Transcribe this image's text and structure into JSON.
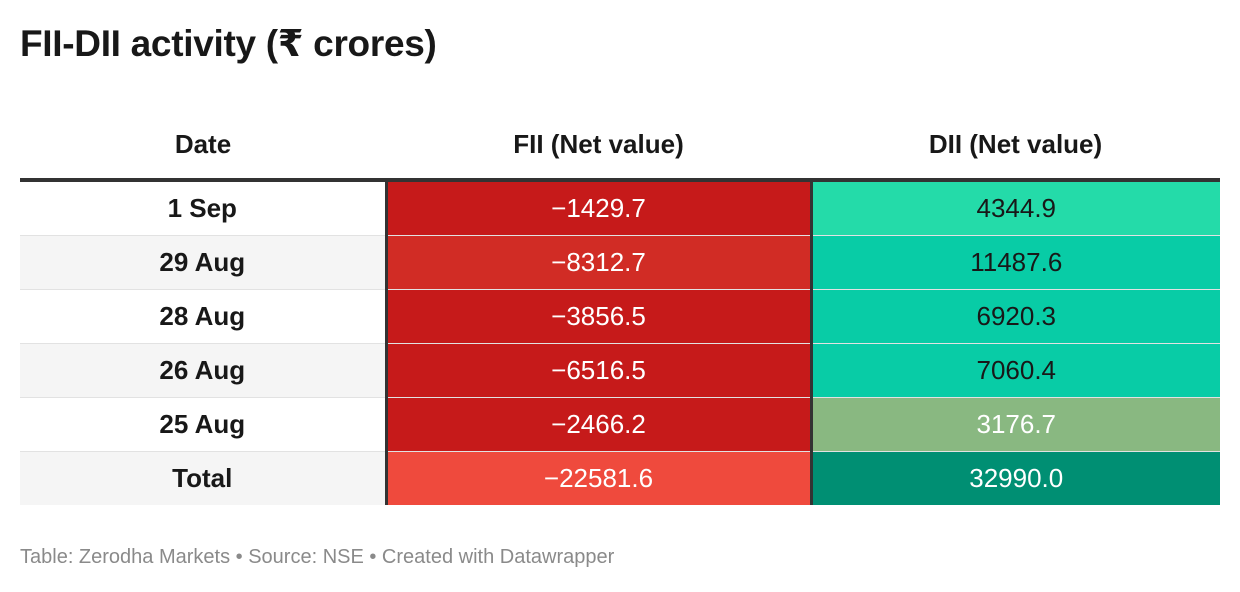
{
  "title": "FII-DII activity (₹ crores)",
  "footer": "Table: Zerodha Markets • Source: NSE • Created with Datawrapper",
  "colors": {
    "fii_dark": "#c61a1a",
    "fii_medium": "#d12c25",
    "fii_light": "#ef4a3d",
    "dii_light": "#24dba9",
    "dii_medium": "#08cca6",
    "dii_olive": "#89b881",
    "dii_dark": "#008f73"
  },
  "chart_data": {
    "type": "table",
    "columns": [
      "Date",
      "FII (Net value)",
      "DII (Net value)"
    ],
    "rows": [
      {
        "date": "1 Sep",
        "fii": "−1429.7",
        "dii": "4344.9",
        "fii_color": "#c61a1a",
        "dii_color": "#24dba9",
        "dii_text": "#181818"
      },
      {
        "date": "29 Aug",
        "fii": "−8312.7",
        "dii": "11487.6",
        "fii_color": "#d12c25",
        "dii_color": "#08cca6",
        "dii_text": "#181818"
      },
      {
        "date": "28 Aug",
        "fii": "−3856.5",
        "dii": "6920.3",
        "fii_color": "#c61a1a",
        "dii_color": "#08cca6",
        "dii_text": "#181818"
      },
      {
        "date": "26 Aug",
        "fii": "−6516.5",
        "dii": "7060.4",
        "fii_color": "#c61a1a",
        "dii_color": "#08cca6",
        "dii_text": "#181818"
      },
      {
        "date": "25 Aug",
        "fii": "−2466.2",
        "dii": "3176.7",
        "fii_color": "#c61a1a",
        "dii_color": "#89b881",
        "dii_text": "#ffffff"
      },
      {
        "date": "Total",
        "fii": "−22581.6",
        "dii": "32990.0",
        "fii_color": "#ef4a3d",
        "dii_color": "#008f73",
        "dii_text": "#ffffff"
      }
    ]
  }
}
